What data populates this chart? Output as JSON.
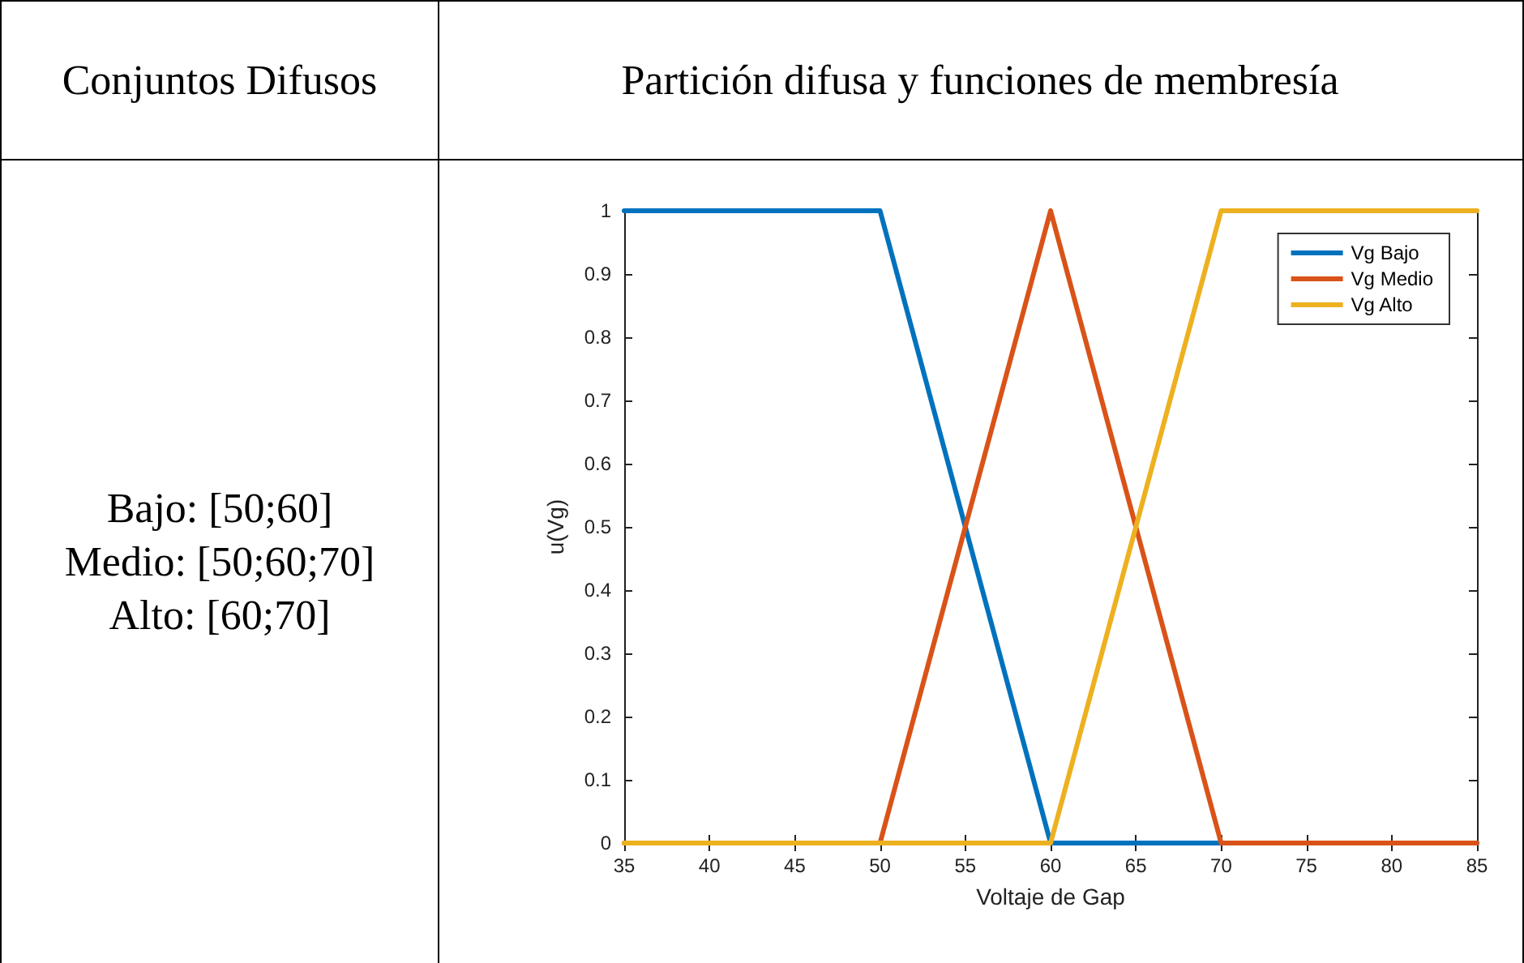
{
  "chart_data": {
    "type": "line",
    "title": "Partición difusa y funciones de membresía",
    "xlabel": "Voltaje de Gap",
    "ylabel": "u(Vg)",
    "annotations": [
      "Conjuntos Difusos",
      "Bajo: [50;60]",
      "Medio: [50;60;70]",
      "Alto: [60;70]"
    ],
    "series": [
      {
        "name": "Vg Bajo",
        "color": "#0072bd",
        "x": [
          35,
          50,
          60,
          85
        ],
        "values": [
          1,
          1,
          0,
          0
        ]
      },
      {
        "name": "Vg Medio",
        "color": "#d95319",
        "x": [
          35,
          50,
          60,
          70,
          85
        ],
        "values": [
          0,
          0,
          1,
          0,
          0
        ]
      },
      {
        "name": "Vg Alto",
        "color": "#edb120",
        "x": [
          35,
          60,
          70,
          85
        ],
        "values": [
          0,
          0,
          1,
          1
        ]
      }
    ],
    "xlim": [
      35,
      85
    ],
    "xticks": [
      35,
      40,
      45,
      50,
      55,
      60,
      65,
      70,
      75,
      80,
      85
    ],
    "ylim": [
      0,
      1
    ],
    "yticks": [
      0,
      0.1,
      0.2,
      0.3,
      0.4,
      0.5,
      0.6,
      0.7,
      0.8,
      0.9,
      1
    ],
    "grid": false,
    "legend": "top right",
    "marker": "none",
    "line_style": "solid"
  }
}
